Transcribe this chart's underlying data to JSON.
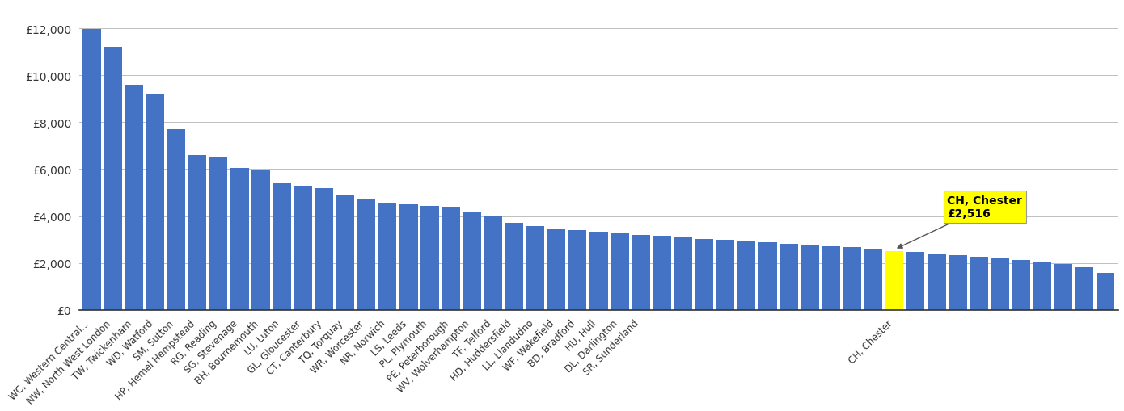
{
  "bar_data": [
    [
      "WC, Western Central...",
      11950
    ],
    [
      "NW, North West London",
      11200
    ],
    [
      "TW, Twickenham",
      9600
    ],
    [
      "WD, Watford",
      9200
    ],
    [
      "SM, Sutton",
      7700
    ],
    [
      "HP, Hemel Hempstead",
      6600
    ],
    [
      "RG, Reading",
      6500
    ],
    [
      "SG, Stevenage",
      6050
    ],
    [
      "BH, Bournemouth",
      5950
    ],
    [
      "LU, Luton",
      5400
    ],
    [
      "GL, Gloucester",
      5300
    ],
    [
      "CT, Canterbury",
      5200
    ],
    [
      "TQ, Torquay",
      4900
    ],
    [
      "WR, Worcester",
      4700
    ],
    [
      "NR, Norwich",
      4580
    ],
    [
      "LS, Leeds",
      4500
    ],
    [
      "PL, Plymouth",
      4430
    ],
    [
      "PE, Peterborough",
      4380
    ],
    [
      "WV, Wolverhampton",
      4200
    ],
    [
      "TF, Telford",
      4000
    ],
    [
      "HD, Huddersfield",
      3700
    ],
    [
      "LL, Llandudno",
      3580
    ],
    [
      "WF, Wakefield",
      3480
    ],
    [
      "BD, Bradford",
      3400
    ],
    [
      "HU, Hull",
      3330
    ],
    [
      "DL, Darlington",
      3270
    ],
    [
      "SR, Sunderland",
      3200
    ],
    [
      "",
      3150
    ],
    [
      "",
      3080
    ],
    [
      "",
      3020
    ],
    [
      "",
      2980
    ],
    [
      "",
      2930
    ],
    [
      "",
      2870
    ],
    [
      "",
      2820
    ],
    [
      "",
      2760
    ],
    [
      "",
      2710
    ],
    [
      "",
      2660
    ],
    [
      "",
      2610
    ],
    [
      "CH, Chester",
      2516
    ],
    [
      "",
      2460
    ],
    [
      "",
      2380
    ],
    [
      "",
      2330
    ],
    [
      "",
      2280
    ],
    [
      "",
      2220
    ],
    [
      "",
      2120
    ],
    [
      "",
      2060
    ],
    [
      "",
      1960
    ],
    [
      "",
      1820
    ],
    [
      "",
      1560
    ]
  ],
  "bar_color": "#4472C4",
  "highlight_color": "#FFFF00",
  "highlight_name": "CH, Chester",
  "highlight_value": 2516,
  "bg_color": "#FFFFFF",
  "grid_color": "#BEBEBE",
  "ylim": [
    0,
    13000
  ],
  "yticks": [
    0,
    2000,
    4000,
    6000,
    8000,
    10000,
    12000
  ],
  "ytick_labels": [
    "£0",
    "£2,000",
    "£4,000",
    "£6,000",
    "£8,000",
    "£10,000",
    "£12,000"
  ],
  "annotation_text": "CH, Chester\n£2,516",
  "bar_width": 0.85
}
